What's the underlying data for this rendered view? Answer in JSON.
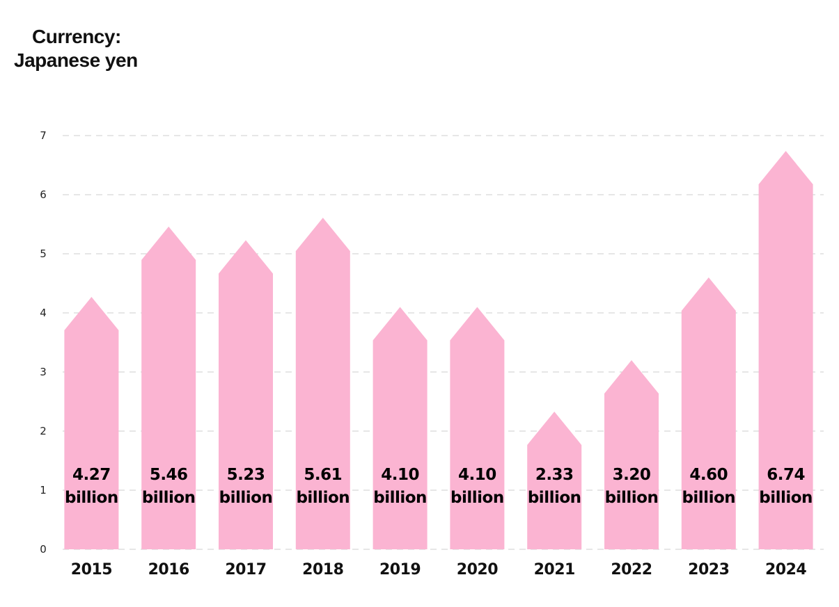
{
  "header": {
    "title_line1": "Currency:",
    "title_line2": "Japanese yen"
  },
  "chart_data": {
    "type": "bar",
    "bar_shape": "arrow",
    "title": "Currency: Japanese yen",
    "xlabel": "",
    "ylabel": "",
    "ylim": [
      0,
      7
    ],
    "yticks": [
      0,
      1,
      2,
      3,
      4,
      5,
      6,
      7
    ],
    "grid": true,
    "color": "#fbb4d2",
    "gridline_color": "#cccccc",
    "categories": [
      "2015",
      "2016",
      "2017",
      "2018",
      "2019",
      "2020",
      "2021",
      "2022",
      "2023",
      "2024"
    ],
    "values": [
      4.27,
      5.46,
      5.23,
      5.61,
      4.1,
      4.1,
      2.33,
      3.2,
      4.6,
      6.74
    ],
    "value_labels": [
      "4.27",
      "5.46",
      "5.23",
      "5.61",
      "4.10",
      "4.10",
      "2.33",
      "3.20",
      "4.60",
      "6.74"
    ],
    "value_unit_label": "billion"
  }
}
